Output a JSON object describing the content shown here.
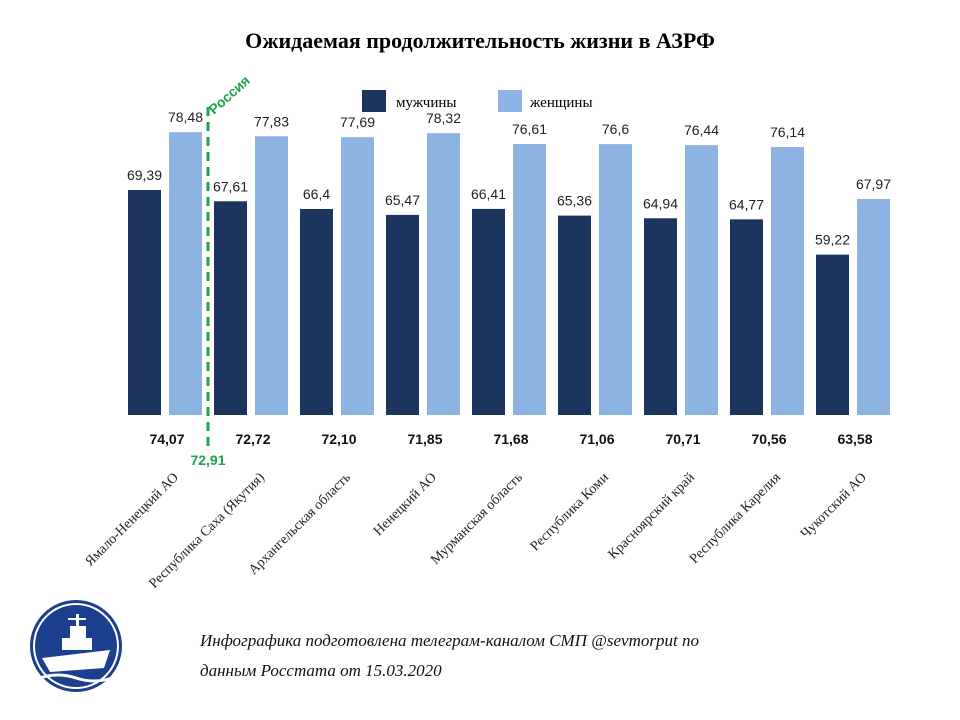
{
  "chart_data": {
    "type": "bar",
    "title": "Ожидаемая продолжительность жизни в АЗРФ",
    "categories": [
      "Ямало-Ненецкий АО",
      "Республика Саха (Якутия)",
      "Архангельская область",
      "Ненецкий АО",
      "Мурманская область",
      "Республика Коми",
      "Красноярский край",
      "Республика Карелия",
      "Чукотский АО"
    ],
    "series": [
      {
        "name": "мужчины",
        "color": "#1c355e",
        "values": [
          69.39,
          67.61,
          66.4,
          65.47,
          66.41,
          65.36,
          64.94,
          64.77,
          59.22
        ],
        "labels": [
          "69,39",
          "67,61",
          "66,4",
          "65,47",
          "66,41",
          "65,36",
          "64,94",
          "64,77",
          "59,22"
        ]
      },
      {
        "name": "женщины",
        "color": "#8db3e2",
        "values": [
          78.48,
          77.83,
          77.69,
          78.32,
          76.61,
          76.6,
          76.44,
          76.14,
          67.97
        ],
        "labels": [
          "78,48",
          "77,83",
          "77,69",
          "78,32",
          "76,61",
          "76,6",
          "76,44",
          "76,14",
          "67,97"
        ]
      }
    ],
    "totals": [
      "74,07",
      "72,72",
      "72,10",
      "71,85",
      "71,68",
      "71,06",
      "70,71",
      "70,56",
      "63,58"
    ],
    "reference": {
      "name": "Россия",
      "value_label": "72,91",
      "color": "#1ba34f"
    },
    "ylim": [
      34,
      80
    ],
    "legend_position": "top-center",
    "grid": false
  },
  "footer": {
    "line1": "Инфографика подготовлена телеграм-каналом СМП @sevmorput по",
    "line2": "данным Росстата от 15.03.2020"
  },
  "logo": {
    "icon": "icebreaker-ship-icon"
  }
}
